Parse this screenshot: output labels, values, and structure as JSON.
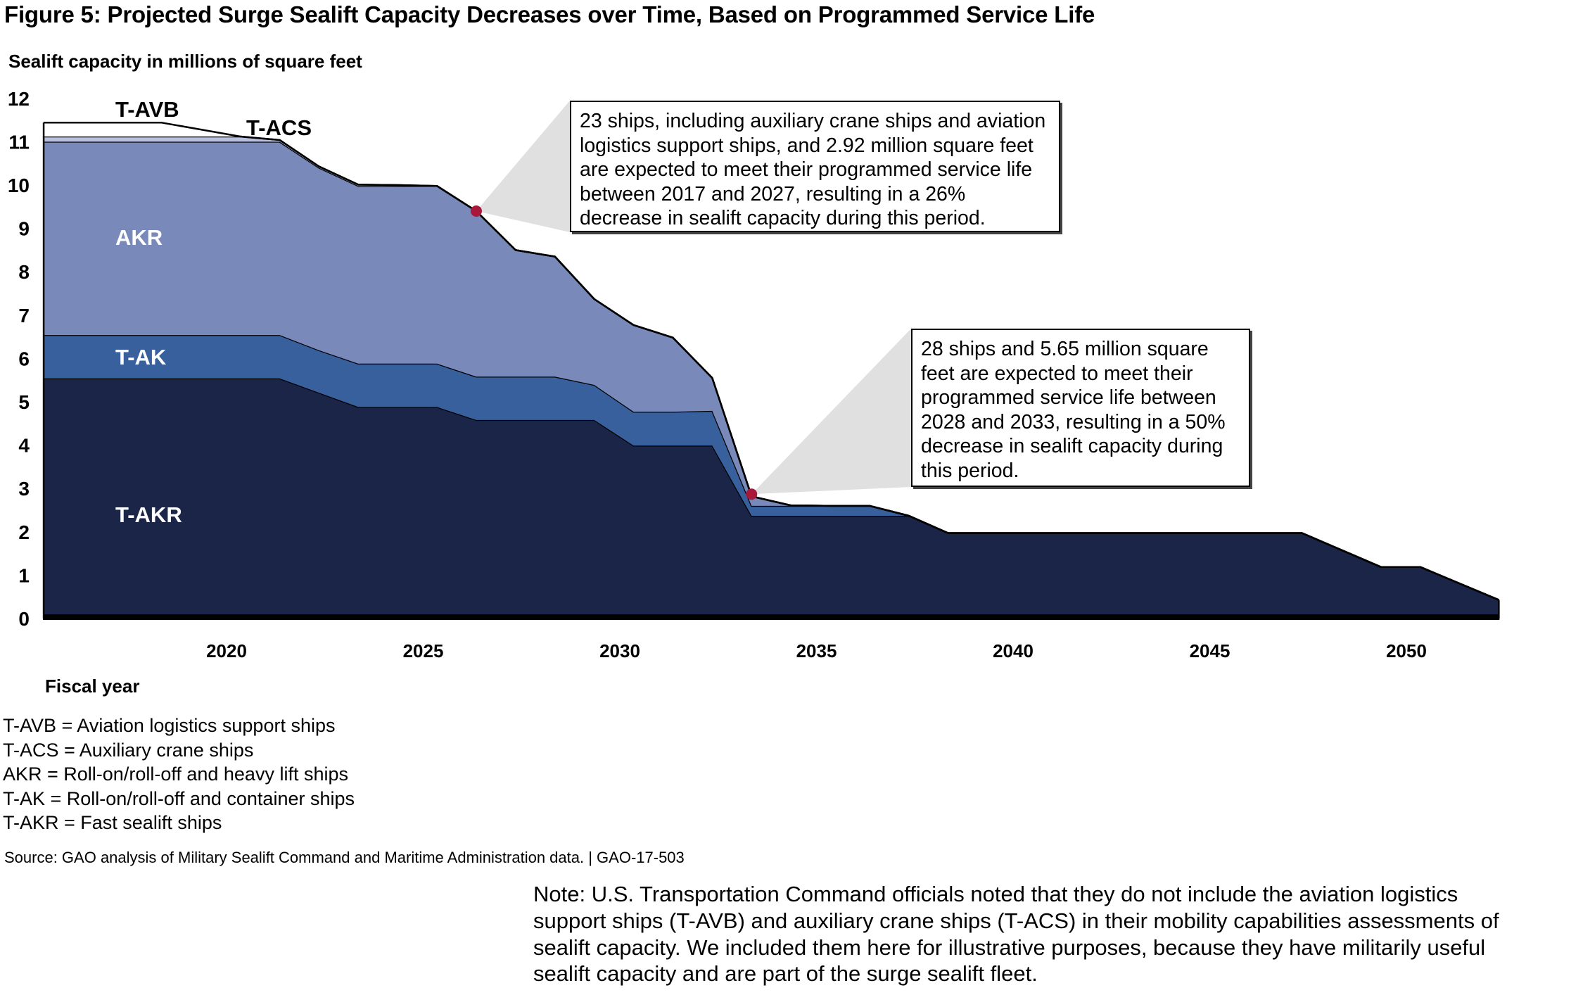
{
  "title": "Figure 5: Projected Surge Sealift Capacity Decreases over Time, Based on Programmed Service Life",
  "chart_data": {
    "type": "area",
    "stacked": true,
    "title": "Figure 5: Projected Surge Sealift Capacity Decreases over Time, Based on Programmed Service Life",
    "ylabel": "Sealift capacity in millions of square feet",
    "xlabel": "Fiscal year",
    "ylim": [
      0,
      12
    ],
    "yticks": [
      0,
      1,
      2,
      3,
      4,
      5,
      6,
      7,
      8,
      9,
      10,
      11,
      12
    ],
    "xticks": [
      2020,
      2025,
      2030,
      2035,
      2040,
      2045,
      2050
    ],
    "grid": false,
    "x": [
      2015,
      2016,
      2017,
      2018,
      2019,
      2020,
      2021,
      2022,
      2023,
      2024,
      2025,
      2026,
      2027,
      2028,
      2029,
      2030,
      2031,
      2032,
      2033,
      2034,
      2035,
      2036,
      2037,
      2038,
      2039,
      2040,
      2041,
      2042,
      2043,
      2044,
      2045,
      2046,
      2047,
      2048,
      2049,
      2050,
      2051,
      2052
    ],
    "series": [
      {
        "name": "T-AKR",
        "color": "#1A2548",
        "values": [
          5.54,
          5.54,
          5.54,
          5.54,
          5.54,
          5.54,
          5.54,
          5.21,
          4.88,
          4.88,
          4.88,
          4.58,
          4.58,
          4.58,
          4.58,
          3.99,
          3.99,
          3.99,
          2.37,
          2.37,
          2.37,
          2.37,
          2.37,
          1.97,
          1.97,
          1.97,
          1.97,
          1.97,
          1.97,
          1.97,
          1.97,
          1.97,
          1.97,
          1.58,
          1.19,
          1.19,
          0.81,
          0.43
        ]
      },
      {
        "name": "T-AK",
        "color": "#37609D",
        "values": [
          1.0,
          1.0,
          1.0,
          1.0,
          1.0,
          1.0,
          1.0,
          0.98,
          1.0,
          1.0,
          1.0,
          1.0,
          1.0,
          1.0,
          0.81,
          0.78,
          0.78,
          0.8,
          0.23,
          0.23,
          0.23,
          0.23,
          0,
          0,
          0,
          0,
          0,
          0,
          0,
          0,
          0,
          0,
          0,
          0,
          0,
          0,
          0,
          0
        ]
      },
      {
        "name": "AKR",
        "color": "#7889BA",
        "values": [
          4.46,
          4.46,
          4.46,
          4.46,
          4.46,
          4.46,
          4.46,
          4.21,
          4.1,
          4.1,
          4.1,
          3.82,
          2.92,
          2.77,
          1.98,
          2.0,
          1.71,
          0.76,
          0.22,
          0.01,
          0,
          0,
          0,
          0,
          0,
          0,
          0,
          0,
          0,
          0,
          0,
          0,
          0,
          0,
          0,
          0,
          0,
          0
        ]
      },
      {
        "name": "T-ACS",
        "color": "#B8C0DE",
        "values": [
          0.12,
          0.12,
          0.12,
          0.12,
          0.12,
          0.12,
          0.04,
          0.03,
          0.03,
          0.02,
          0,
          0,
          0,
          0,
          0,
          0,
          0,
          0,
          0,
          0,
          0,
          0,
          0,
          0,
          0,
          0,
          0,
          0,
          0,
          0,
          0,
          0,
          0,
          0,
          0,
          0,
          0,
          0
        ]
      },
      {
        "name": "T-AVB",
        "color": "#FFFFFF",
        "values": [
          0.32,
          0.32,
          0.32,
          0.32,
          0.16,
          0,
          0,
          0,
          0,
          0,
          0,
          0,
          0,
          0,
          0,
          0,
          0,
          0,
          0,
          0,
          0,
          0,
          0,
          0,
          0,
          0,
          0,
          0,
          0,
          0,
          0,
          0,
          0,
          0,
          0,
          0,
          0,
          0
        ]
      }
    ],
    "annotations": [
      {
        "text": "23 ships, including auxiliary crane ships and aviation logistics support ships, and 2.92 million square feet are expected to meet their programmed service life between 2017 and 2027, resulting in a 26% decrease in sealift capacity during this period.",
        "marker_year": 2026,
        "marker_value": 9.4
      },
      {
        "text": "28 ships and 5.65 million square feet are expected to meet their programmed service life between 2028 and 2033, resulting in a 50% decrease in sealift capacity during this period.",
        "marker_year": 2033,
        "marker_value": 2.87
      }
    ],
    "marker_color": "#A8183A",
    "callout_color": "#E0E0E0"
  },
  "series_labels": {
    "t_avb": "T-AVB",
    "t_acs": "T-ACS",
    "akr": "AKR",
    "t_ak": "T-AK",
    "t_akr": "T-AKR"
  },
  "callouts": [
    {
      "lines": [
        "23 ships, including auxiliary crane ships and aviation",
        "logistics support ships, and 2.92 million square feet",
        "are expected to meet their programmed service life",
        "between 2017 and 2027, resulting in a 26%",
        "decrease in sealift capacity during this period."
      ]
    },
    {
      "lines": [
        "28 ships and 5.65 million square",
        "feet are expected to meet their",
        "programmed service life between",
        "2028 and 2033, resulting in a 50%",
        "decrease in sealift capacity during",
        "this period."
      ]
    }
  ],
  "legend": [
    "T-AVB = Aviation logistics support ships",
    "T-ACS = Auxiliary crane ships",
    "AKR = Roll-on/roll-off and heavy lift ships",
    "T-AK = Roll-on/roll-off and container ships",
    "T-AKR = Fast sealift ships"
  ],
  "source": "Source: GAO analysis of Military Sealift Command and Maritime Administration data.  |  GAO-17-503",
  "note_lines": [
    "Note: U.S. Transportation Command officials noted that they do not include the aviation logistics",
    "support ships (T-AVB) and auxiliary crane ships (T-ACS) in their mobility capabilities assessments of",
    "sealift capacity. We included them here for illustrative purposes, because they have militarily useful",
    "sealift capacity and are part of the surge sealift fleet."
  ]
}
